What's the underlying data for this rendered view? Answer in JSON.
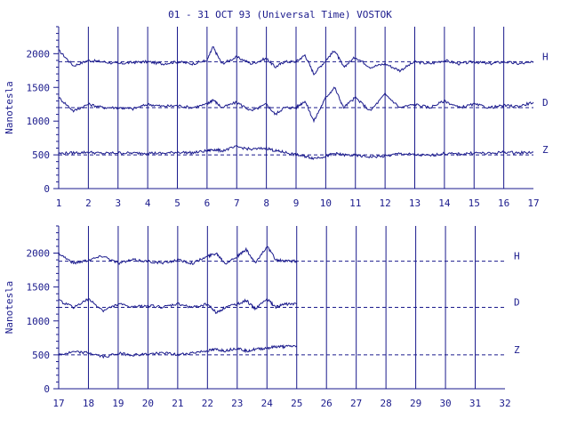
{
  "title": "01 - 31 OCT 93 (Universal Time) VOSTOK",
  "colors": {
    "ink": "#1a1a8c",
    "background": "#ffffff"
  },
  "chart_data": [
    {
      "type": "line",
      "panel": "top",
      "ylabel": "Nanotesla",
      "ylim": [
        0,
        2400
      ],
      "yticks": [
        0,
        500,
        1000,
        1500,
        2000
      ],
      "xlim": [
        1,
        17
      ],
      "xticks": [
        1,
        2,
        3,
        4,
        5,
        6,
        7,
        8,
        9,
        10,
        11,
        12,
        13,
        14,
        15,
        16,
        17
      ],
      "baselines": [
        {
          "component": "H",
          "value": 1880
        },
        {
          "component": "D",
          "value": 1200
        },
        {
          "component": "Z",
          "value": 500
        }
      ],
      "series": [
        {
          "name": "H",
          "x": [
            1,
            1.5,
            2,
            2.5,
            3,
            3.5,
            4,
            4.5,
            5,
            5.5,
            6,
            6.2,
            6.5,
            7,
            7.5,
            8,
            8.3,
            8.6,
            9,
            9.3,
            9.6,
            10,
            10.3,
            10.6,
            11,
            11.5,
            12,
            12.5,
            13,
            13.5,
            14,
            14.5,
            15,
            15.5,
            16,
            16.5,
            17
          ],
          "values": [
            2050,
            1820,
            1900,
            1880,
            1850,
            1870,
            1880,
            1850,
            1880,
            1850,
            1900,
            2100,
            1850,
            1950,
            1850,
            1930,
            1800,
            1880,
            1880,
            1980,
            1700,
            1900,
            2050,
            1800,
            1950,
            1800,
            1850,
            1750,
            1880,
            1850,
            1900,
            1850,
            1880,
            1850,
            1880,
            1850,
            1870
          ]
        },
        {
          "name": "D",
          "x": [
            1,
            1.5,
            2,
            2.5,
            3,
            3.5,
            4,
            4.5,
            5,
            5.5,
            6,
            6.2,
            6.5,
            7,
            7.5,
            8,
            8.3,
            8.6,
            9,
            9.3,
            9.6,
            10,
            10.3,
            10.6,
            11,
            11.5,
            12,
            12.5,
            13,
            13.5,
            14,
            14.5,
            15,
            15.5,
            16,
            16.5,
            17
          ],
          "values": [
            1350,
            1150,
            1250,
            1200,
            1200,
            1180,
            1250,
            1220,
            1230,
            1200,
            1250,
            1320,
            1200,
            1280,
            1150,
            1250,
            1100,
            1200,
            1200,
            1300,
            1000,
            1350,
            1500,
            1200,
            1350,
            1150,
            1400,
            1200,
            1250,
            1200,
            1300,
            1200,
            1250,
            1200,
            1230,
            1220,
            1280
          ]
        },
        {
          "name": "Z",
          "x": [
            1,
            1.5,
            2,
            2.5,
            3,
            3.5,
            4,
            4.5,
            5,
            5.5,
            6,
            6.2,
            6.5,
            7,
            7.5,
            8,
            8.3,
            8.6,
            9,
            9.3,
            9.6,
            10,
            10.3,
            10.6,
            11,
            11.5,
            12,
            12.5,
            13,
            13.5,
            14,
            14.5,
            15,
            15.5,
            16,
            16.5,
            17
          ],
          "values": [
            520,
            530,
            540,
            520,
            530,
            525,
            530,
            520,
            540,
            530,
            560,
            580,
            560,
            620,
            580,
            600,
            560,
            540,
            500,
            480,
            450,
            480,
            520,
            500,
            490,
            470,
            480,
            520,
            500,
            490,
            520,
            510,
            530,
            520,
            540,
            530,
            540
          ]
        }
      ]
    },
    {
      "type": "line",
      "panel": "bottom",
      "ylabel": "Nanotesla",
      "ylim": [
        0,
        2400
      ],
      "yticks": [
        0,
        500,
        1000,
        1500,
        2000
      ],
      "xlim": [
        17,
        32
      ],
      "xticks": [
        17,
        18,
        19,
        20,
        21,
        22,
        23,
        24,
        25,
        26,
        27,
        28,
        29,
        30,
        31,
        32
      ],
      "baselines": [
        {
          "component": "H",
          "value": 1880
        },
        {
          "component": "D",
          "value": 1200
        },
        {
          "component": "Z",
          "value": 500
        }
      ],
      "series": [
        {
          "name": "H",
          "x": [
            17,
            17.5,
            18,
            18.5,
            19,
            19.5,
            20,
            20.5,
            21,
            21.5,
            22,
            22.3,
            22.6,
            23,
            23.3,
            23.6,
            24,
            24.3,
            24.6,
            25
          ],
          "values": [
            2000,
            1850,
            1900,
            1960,
            1850,
            1900,
            1880,
            1850,
            1900,
            1850,
            1950,
            2000,
            1850,
            1950,
            2050,
            1850,
            2100,
            1900,
            1880,
            1880
          ]
        },
        {
          "name": "D",
          "x": [
            17,
            17.5,
            18,
            18.5,
            19,
            19.5,
            20,
            20.5,
            21,
            21.5,
            22,
            22.3,
            22.6,
            23,
            23.3,
            23.6,
            24,
            24.3,
            24.6,
            25
          ],
          "values": [
            1300,
            1200,
            1320,
            1150,
            1250,
            1200,
            1230,
            1200,
            1250,
            1200,
            1250,
            1120,
            1200,
            1250,
            1300,
            1180,
            1320,
            1200,
            1250,
            1250
          ]
        },
        {
          "name": "Z",
          "x": [
            17,
            17.5,
            18,
            18.5,
            19,
            19.5,
            20,
            20.5,
            21,
            21.5,
            22,
            22.3,
            22.6,
            23,
            23.3,
            23.6,
            24,
            24.3,
            24.6,
            25
          ],
          "values": [
            500,
            540,
            530,
            470,
            520,
            500,
            510,
            530,
            500,
            530,
            560,
            580,
            560,
            600,
            560,
            580,
            600,
            620,
            620,
            630
          ]
        }
      ]
    }
  ]
}
